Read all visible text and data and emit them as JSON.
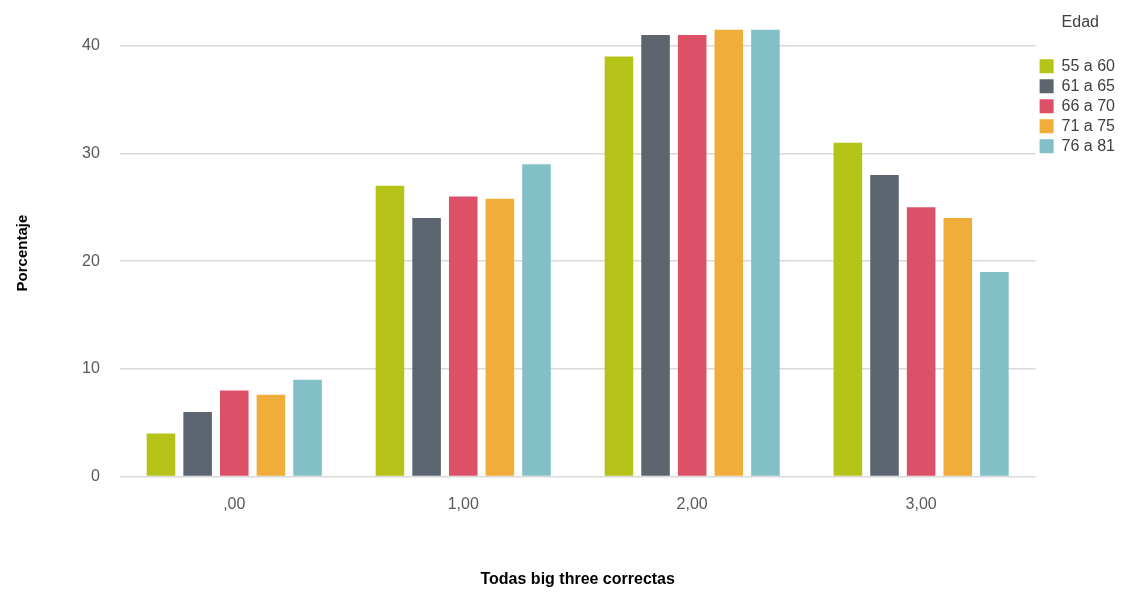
{
  "chart_data": {
    "type": "bar",
    "xlabel": "Todas big three correctas",
    "ylabel": "Porcentaje",
    "legend_title": "Edad",
    "categories": [
      ",00",
      "1,00",
      "2,00",
      "3,00"
    ],
    "series": [
      {
        "name": "55 a 60",
        "color": "#b5c318",
        "values": [
          4,
          27,
          39,
          31
        ]
      },
      {
        "name": "61 a 65",
        "color": "#5d6570",
        "values": [
          6,
          24,
          41,
          28
        ]
      },
      {
        "name": "66 a 70",
        "color": "#dc5068",
        "values": [
          8,
          26,
          41,
          25
        ]
      },
      {
        "name": "71 a 75",
        "color": "#f0ad3a",
        "values": [
          7.6,
          25.8,
          41.5,
          24
        ]
      },
      {
        "name": "76 a 81",
        "color": "#82bfc6",
        "values": [
          9,
          29,
          41.5,
          19
        ]
      }
    ],
    "ylim": [
      0,
      41.5
    ],
    "yticks": [
      0,
      10,
      20,
      30,
      40
    ],
    "grid": "y",
    "legend": "top right"
  }
}
